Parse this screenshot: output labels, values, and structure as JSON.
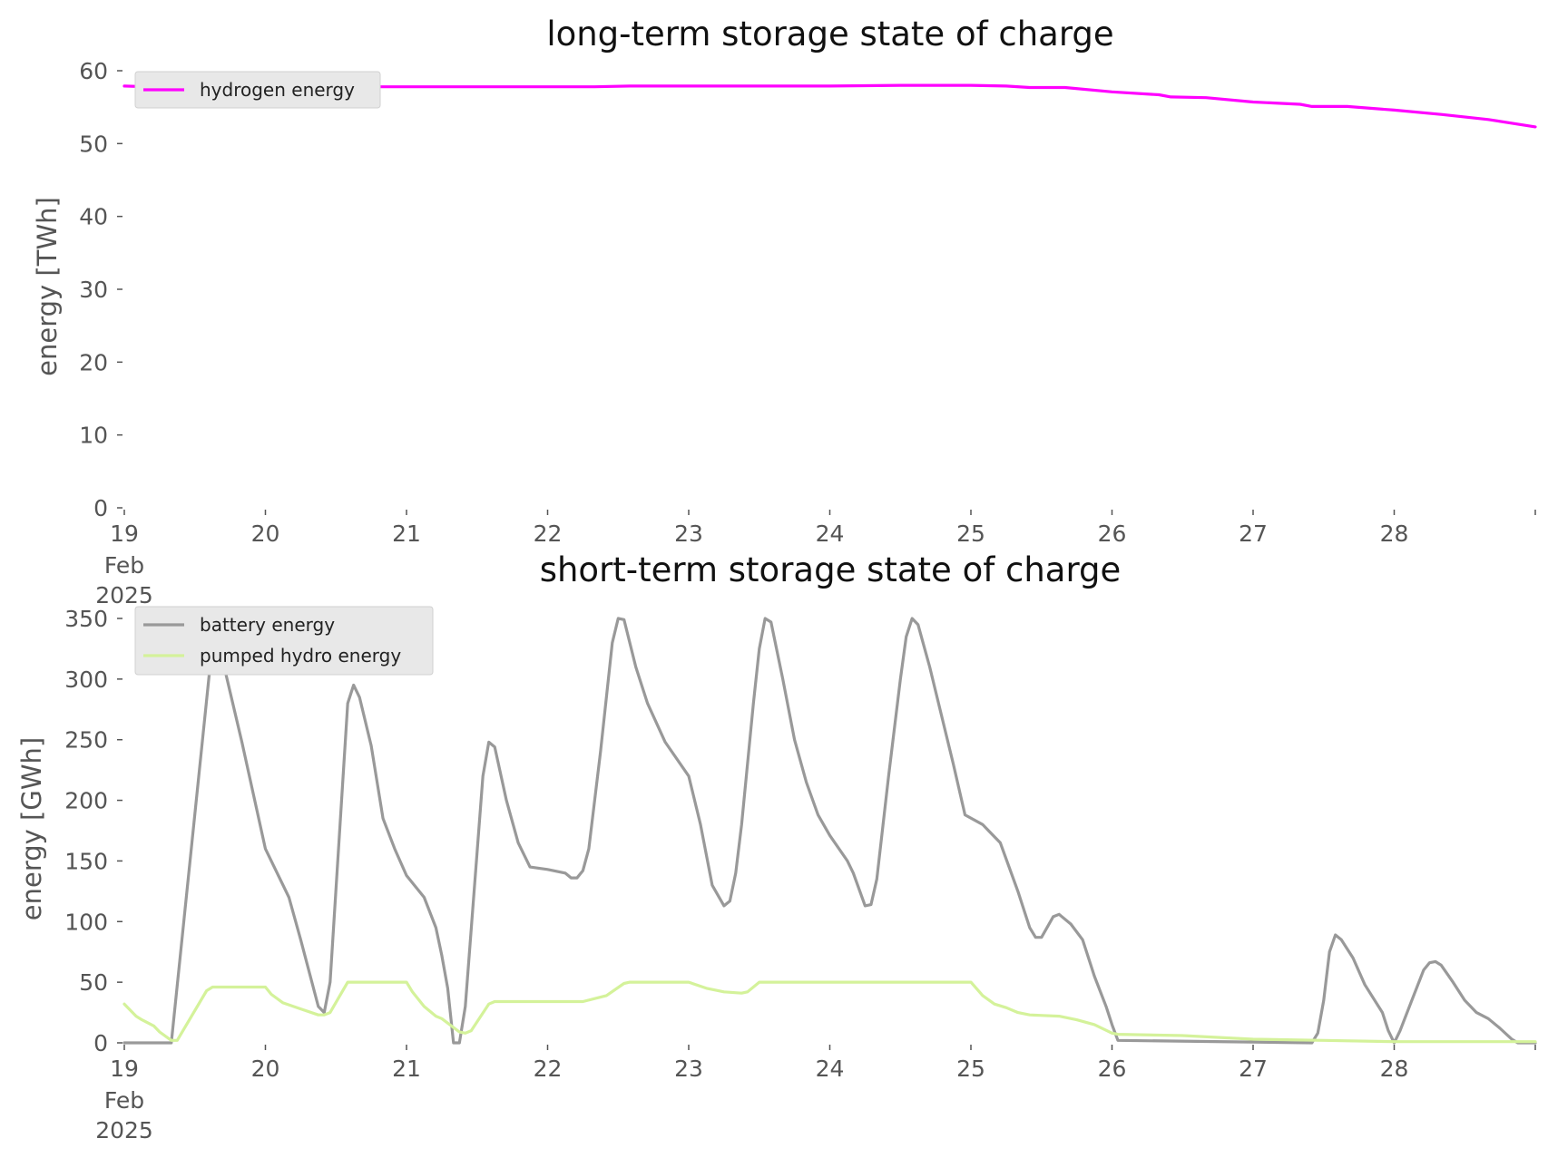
{
  "chart_data": [
    {
      "type": "line",
      "title": "long-term storage state of charge",
      "ylabel": "energy [TWh]",
      "xlabel": "",
      "x_range": [
        "2025-02-19",
        "2025-03-01"
      ],
      "ylim": [
        0,
        60
      ],
      "y_ticks": [
        0,
        10,
        20,
        30,
        40,
        50,
        60
      ],
      "x_ticks": [
        {
          "label": "19",
          "sub": [
            "Feb",
            "2025"
          ]
        },
        {
          "label": "20"
        },
        {
          "label": "21"
        },
        {
          "label": "22"
        },
        {
          "label": "23"
        },
        {
          "label": "24"
        },
        {
          "label": "25"
        },
        {
          "label": "26"
        },
        {
          "label": "27"
        },
        {
          "label": "28"
        }
      ],
      "grid": false,
      "legend_position": "top-left",
      "series": [
        {
          "name": "hydrogen energy",
          "color": "#ff00ff",
          "points": [
            [
              "2025-02-19 00:00",
              57.9
            ],
            [
              "2025-02-19 12:00",
              57.6
            ],
            [
              "2025-02-19 18:00",
              57.8
            ],
            [
              "2025-02-20 00:00",
              57.8
            ],
            [
              "2025-02-21 00:00",
              57.8
            ],
            [
              "2025-02-22 00:00",
              57.8
            ],
            [
              "2025-02-22 08:00",
              57.8
            ],
            [
              "2025-02-22 14:00",
              57.9
            ],
            [
              "2025-02-23 00:00",
              57.9
            ],
            [
              "2025-02-24 00:00",
              57.9
            ],
            [
              "2025-02-24 12:00",
              58.0
            ],
            [
              "2025-02-25 00:00",
              58.0
            ],
            [
              "2025-02-25 06:00",
              57.9
            ],
            [
              "2025-02-25 10:00",
              57.7
            ],
            [
              "2025-02-25 16:00",
              57.7
            ],
            [
              "2025-02-26 00:00",
              57.1
            ],
            [
              "2025-02-26 08:00",
              56.7
            ],
            [
              "2025-02-26 10:00",
              56.4
            ],
            [
              "2025-02-26 16:00",
              56.3
            ],
            [
              "2025-02-27 00:00",
              55.7
            ],
            [
              "2025-02-27 08:00",
              55.4
            ],
            [
              "2025-02-27 10:00",
              55.1
            ],
            [
              "2025-02-27 16:00",
              55.1
            ],
            [
              "2025-02-28 00:00",
              54.6
            ],
            [
              "2025-02-28 08:00",
              54.0
            ],
            [
              "2025-02-28 16:00",
              53.3
            ],
            [
              "2025-03-01 00:00",
              52.3
            ]
          ]
        }
      ]
    },
    {
      "type": "line",
      "title": "short-term storage state of charge",
      "ylabel": "energy [GWh]",
      "xlabel": "",
      "x_range": [
        "2025-02-19",
        "2025-03-01"
      ],
      "ylim": [
        0,
        350
      ],
      "y_ticks": [
        0,
        50,
        100,
        150,
        200,
        250,
        300,
        350
      ],
      "x_ticks": [
        {
          "label": "19",
          "sub": [
            "Feb",
            "2025"
          ]
        },
        {
          "label": "20"
        },
        {
          "label": "21"
        },
        {
          "label": "22"
        },
        {
          "label": "23"
        },
        {
          "label": "24"
        },
        {
          "label": "25"
        },
        {
          "label": "26"
        },
        {
          "label": "27"
        },
        {
          "label": "28"
        }
      ],
      "grid": false,
      "legend_position": "top-left",
      "series": [
        {
          "name": "battery energy",
          "color": "#999999",
          "points": [
            [
              "2025-02-19 00:00",
              0
            ],
            [
              "2025-02-19 08:00",
              0
            ],
            [
              "2025-02-19 15:00",
              330
            ],
            [
              "2025-02-19 17:00",
              310
            ],
            [
              "2025-02-19 20:00",
              248
            ],
            [
              "2025-02-20 00:00",
              160
            ],
            [
              "2025-02-20 04:00",
              120
            ],
            [
              "2025-02-20 06:00",
              85
            ],
            [
              "2025-02-20 09:00",
              30
            ],
            [
              "2025-02-20 10:00",
              25
            ],
            [
              "2025-02-20 11:00",
              50
            ],
            [
              "2025-02-20 14:00",
              280
            ],
            [
              "2025-02-20 15:00",
              295
            ],
            [
              "2025-02-20 16:00",
              285
            ],
            [
              "2025-02-20 18:00",
              245
            ],
            [
              "2025-02-20 20:00",
              185
            ],
            [
              "2025-02-20 22:00",
              160
            ],
            [
              "2025-02-21 00:00",
              138
            ],
            [
              "2025-02-21 03:00",
              120
            ],
            [
              "2025-02-21 05:00",
              95
            ],
            [
              "2025-02-21 06:00",
              72
            ],
            [
              "2025-02-21 07:00",
              45
            ],
            [
              "2025-02-21 08:00",
              0
            ],
            [
              "2025-02-21 09:00",
              0
            ],
            [
              "2025-02-21 10:00",
              30
            ],
            [
              "2025-02-21 13:00",
              220
            ],
            [
              "2025-02-21 14:00",
              248
            ],
            [
              "2025-02-21 15:00",
              244
            ],
            [
              "2025-02-21 17:00",
              200
            ],
            [
              "2025-02-21 19:00",
              165
            ],
            [
              "2025-02-21 21:00",
              145
            ],
            [
              "2025-02-22 00:00",
              143
            ],
            [
              "2025-02-22 03:00",
              140
            ],
            [
              "2025-02-22 04:00",
              136
            ],
            [
              "2025-02-22 05:00",
              136
            ],
            [
              "2025-02-22 06:00",
              142
            ],
            [
              "2025-02-22 07:00",
              160
            ],
            [
              "2025-02-22 09:00",
              240
            ],
            [
              "2025-02-22 11:00",
              330
            ],
            [
              "2025-02-22 12:00",
              350
            ],
            [
              "2025-02-22 13:00",
              349
            ],
            [
              "2025-02-22 15:00",
              310
            ],
            [
              "2025-02-22 17:00",
              280
            ],
            [
              "2025-02-22 20:00",
              248
            ],
            [
              "2025-02-23 00:00",
              220
            ],
            [
              "2025-02-23 02:00",
              180
            ],
            [
              "2025-02-23 04:00",
              130
            ],
            [
              "2025-02-23 06:00",
              113
            ],
            [
              "2025-02-23 07:00",
              117
            ],
            [
              "2025-02-23 08:00",
              140
            ],
            [
              "2025-02-23 09:00",
              180
            ],
            [
              "2025-02-23 11:00",
              280
            ],
            [
              "2025-02-23 12:00",
              325
            ],
            [
              "2025-02-23 13:00",
              350
            ],
            [
              "2025-02-23 14:00",
              347
            ],
            [
              "2025-02-23 16:00",
              300
            ],
            [
              "2025-02-23 18:00",
              250
            ],
            [
              "2025-02-23 20:00",
              215
            ],
            [
              "2025-02-23 22:00",
              188
            ],
            [
              "2025-02-24 00:00",
              171
            ],
            [
              "2025-02-24 03:00",
              150
            ],
            [
              "2025-02-24 04:00",
              140
            ],
            [
              "2025-02-24 06:00",
              113
            ],
            [
              "2025-02-24 07:00",
              114
            ],
            [
              "2025-02-24 08:00",
              135
            ],
            [
              "2025-02-24 10:00",
              220
            ],
            [
              "2025-02-24 12:00",
              300
            ],
            [
              "2025-02-24 13:00",
              335
            ],
            [
              "2025-02-24 14:00",
              350
            ],
            [
              "2025-02-24 15:00",
              345
            ],
            [
              "2025-02-24 17:00",
              310
            ],
            [
              "2025-02-24 19:00",
              270
            ],
            [
              "2025-02-24 21:00",
              230
            ],
            [
              "2025-02-24 23:00",
              188
            ],
            [
              "2025-02-25 02:00",
              180
            ],
            [
              "2025-02-25 03:00",
              175
            ],
            [
              "2025-02-25 05:00",
              165
            ],
            [
              "2025-02-25 08:00",
              125
            ],
            [
              "2025-02-25 10:00",
              95
            ],
            [
              "2025-02-25 11:00",
              87
            ],
            [
              "2025-02-25 12:00",
              87
            ],
            [
              "2025-02-25 14:00",
              104
            ],
            [
              "2025-02-25 15:00",
              106
            ],
            [
              "2025-02-25 17:00",
              98
            ],
            [
              "2025-02-25 19:00",
              85
            ],
            [
              "2025-02-25 21:00",
              55
            ],
            [
              "2025-02-25 23:00",
              30
            ],
            [
              "2025-02-26 00:00",
              15
            ],
            [
              "2025-02-26 01:00",
              2
            ],
            [
              "2025-02-27 10:00",
              0
            ],
            [
              "2025-02-27 11:00",
              8
            ],
            [
              "2025-02-27 12:00",
              35
            ],
            [
              "2025-02-27 13:00",
              75
            ],
            [
              "2025-02-27 14:00",
              89
            ],
            [
              "2025-02-27 15:00",
              85
            ],
            [
              "2025-02-27 17:00",
              70
            ],
            [
              "2025-02-27 19:00",
              48
            ],
            [
              "2025-02-27 22:00",
              25
            ],
            [
              "2025-02-27 23:00",
              10
            ],
            [
              "2025-02-28 00:00",
              0
            ],
            [
              "2025-02-28 01:00",
              10
            ],
            [
              "2025-02-28 03:00",
              35
            ],
            [
              "2025-02-28 05:00",
              60
            ],
            [
              "2025-02-28 06:00",
              66
            ],
            [
              "2025-02-28 07:00",
              67
            ],
            [
              "2025-02-28 08:00",
              64
            ],
            [
              "2025-02-28 10:00",
              50
            ],
            [
              "2025-02-28 12:00",
              35
            ],
            [
              "2025-02-28 14:00",
              25
            ],
            [
              "2025-02-28 16:00",
              20
            ],
            [
              "2025-02-28 18:00",
              12
            ],
            [
              "2025-02-28 20:00",
              3
            ],
            [
              "2025-02-28 21:00",
              0
            ],
            [
              "2025-03-01 00:00",
              0
            ]
          ]
        },
        {
          "name": "pumped hydro energy",
          "color": "#d4f29a",
          "points": [
            [
              "2025-02-19 00:00",
              32
            ],
            [
              "2025-02-19 02:00",
              22
            ],
            [
              "2025-02-19 03:00",
              19
            ],
            [
              "2025-02-19 05:00",
              14
            ],
            [
              "2025-02-19 06:00",
              9
            ],
            [
              "2025-02-19 08:00",
              2
            ],
            [
              "2025-02-19 09:00",
              2
            ],
            [
              "2025-02-19 14:00",
              43
            ],
            [
              "2025-02-19 15:00",
              46
            ],
            [
              "2025-02-20 00:00",
              46
            ],
            [
              "2025-02-20 01:00",
              40
            ],
            [
              "2025-02-20 03:00",
              33
            ],
            [
              "2025-02-20 06:00",
              28
            ],
            [
              "2025-02-20 09:00",
              23
            ],
            [
              "2025-02-20 10:00",
              23
            ],
            [
              "2025-02-20 11:00",
              25
            ],
            [
              "2025-02-20 14:00",
              50
            ],
            [
              "2025-02-21 00:00",
              50
            ],
            [
              "2025-02-21 01:00",
              42
            ],
            [
              "2025-02-21 03:00",
              30
            ],
            [
              "2025-02-21 05:00",
              22
            ],
            [
              "2025-02-21 06:00",
              20
            ],
            [
              "2025-02-21 09:00",
              9
            ],
            [
              "2025-02-21 10:00",
              8
            ],
            [
              "2025-02-21 11:00",
              10
            ],
            [
              "2025-02-21 14:00",
              32
            ],
            [
              "2025-02-21 15:00",
              34
            ],
            [
              "2025-02-22 06:00",
              34
            ],
            [
              "2025-02-22 10:00",
              39
            ],
            [
              "2025-02-22 13:00",
              49
            ],
            [
              "2025-02-22 14:00",
              50
            ],
            [
              "2025-02-23 00:00",
              50
            ],
            [
              "2025-02-23 03:00",
              45
            ],
            [
              "2025-02-23 06:00",
              42
            ],
            [
              "2025-02-23 09:00",
              41
            ],
            [
              "2025-02-23 10:00",
              42
            ],
            [
              "2025-02-23 12:00",
              50
            ],
            [
              "2025-02-25 00:00",
              50
            ],
            [
              "2025-02-25 02:00",
              39
            ],
            [
              "2025-02-25 04:00",
              32
            ],
            [
              "2025-02-25 06:00",
              29
            ],
            [
              "2025-02-25 08:00",
              25
            ],
            [
              "2025-02-25 10:00",
              23
            ],
            [
              "2025-02-25 15:00",
              22
            ],
            [
              "2025-02-25 18:00",
              19
            ],
            [
              "2025-02-25 21:00",
              15
            ],
            [
              "2025-02-26 00:00",
              8
            ],
            [
              "2025-02-26 01:00",
              7
            ],
            [
              "2025-02-26 12:00",
              6
            ],
            [
              "2025-02-27 00:00",
              3
            ],
            [
              "2025-02-27 12:00",
              2
            ],
            [
              "2025-02-28 00:00",
              1
            ],
            [
              "2025-03-01 00:00",
              1
            ]
          ]
        }
      ]
    }
  ]
}
